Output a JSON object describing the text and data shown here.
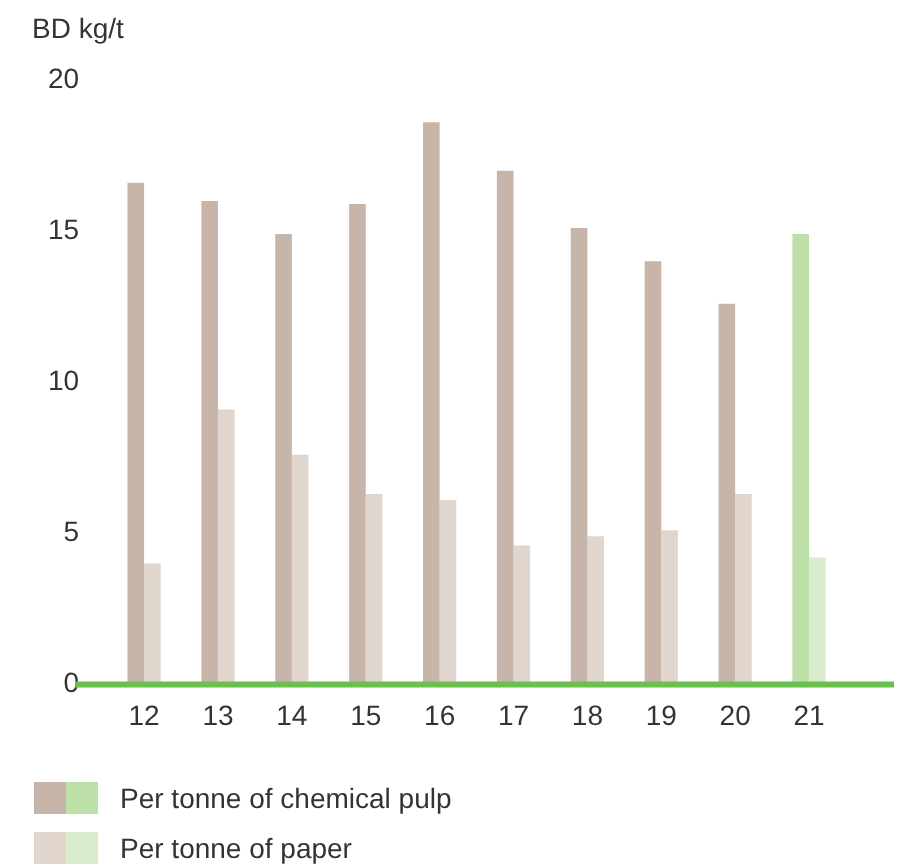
{
  "chart_data": {
    "type": "bar",
    "ylabel": "BD kg/t",
    "categories": [
      "12",
      "13",
      "14",
      "15",
      "16",
      "17",
      "18",
      "19",
      "20",
      "21"
    ],
    "series": [
      {
        "name": "Per tonne of chemical pulp",
        "colors": [
          "#c8b5aa",
          "#c8b5aa",
          "#c8b5aa",
          "#c8b5aa",
          "#c8b5aa",
          "#c8b5aa",
          "#c8b5aa",
          "#c8b5aa",
          "#c8b5aa",
          "#bde0a8"
        ],
        "values": [
          16.6,
          16.0,
          14.9,
          15.9,
          18.6,
          17.0,
          15.1,
          14.0,
          12.6,
          14.9
        ]
      },
      {
        "name": "Per tonne of paper",
        "colors": [
          "#e0d6ce",
          "#e0d6ce",
          "#e0d6ce",
          "#e0d6ce",
          "#e0d6ce",
          "#e0d6ce",
          "#e0d6ce",
          "#e0d6ce",
          "#e0d6ce",
          "#d9edcc"
        ],
        "values": [
          4.0,
          9.1,
          7.6,
          6.3,
          6.1,
          4.6,
          4.9,
          5.1,
          6.3,
          4.2
        ]
      }
    ],
    "ylim": [
      0,
      20
    ],
    "yticks": [
      0,
      5,
      10,
      15,
      20
    ],
    "grid": false,
    "legend": "bottom"
  }
}
